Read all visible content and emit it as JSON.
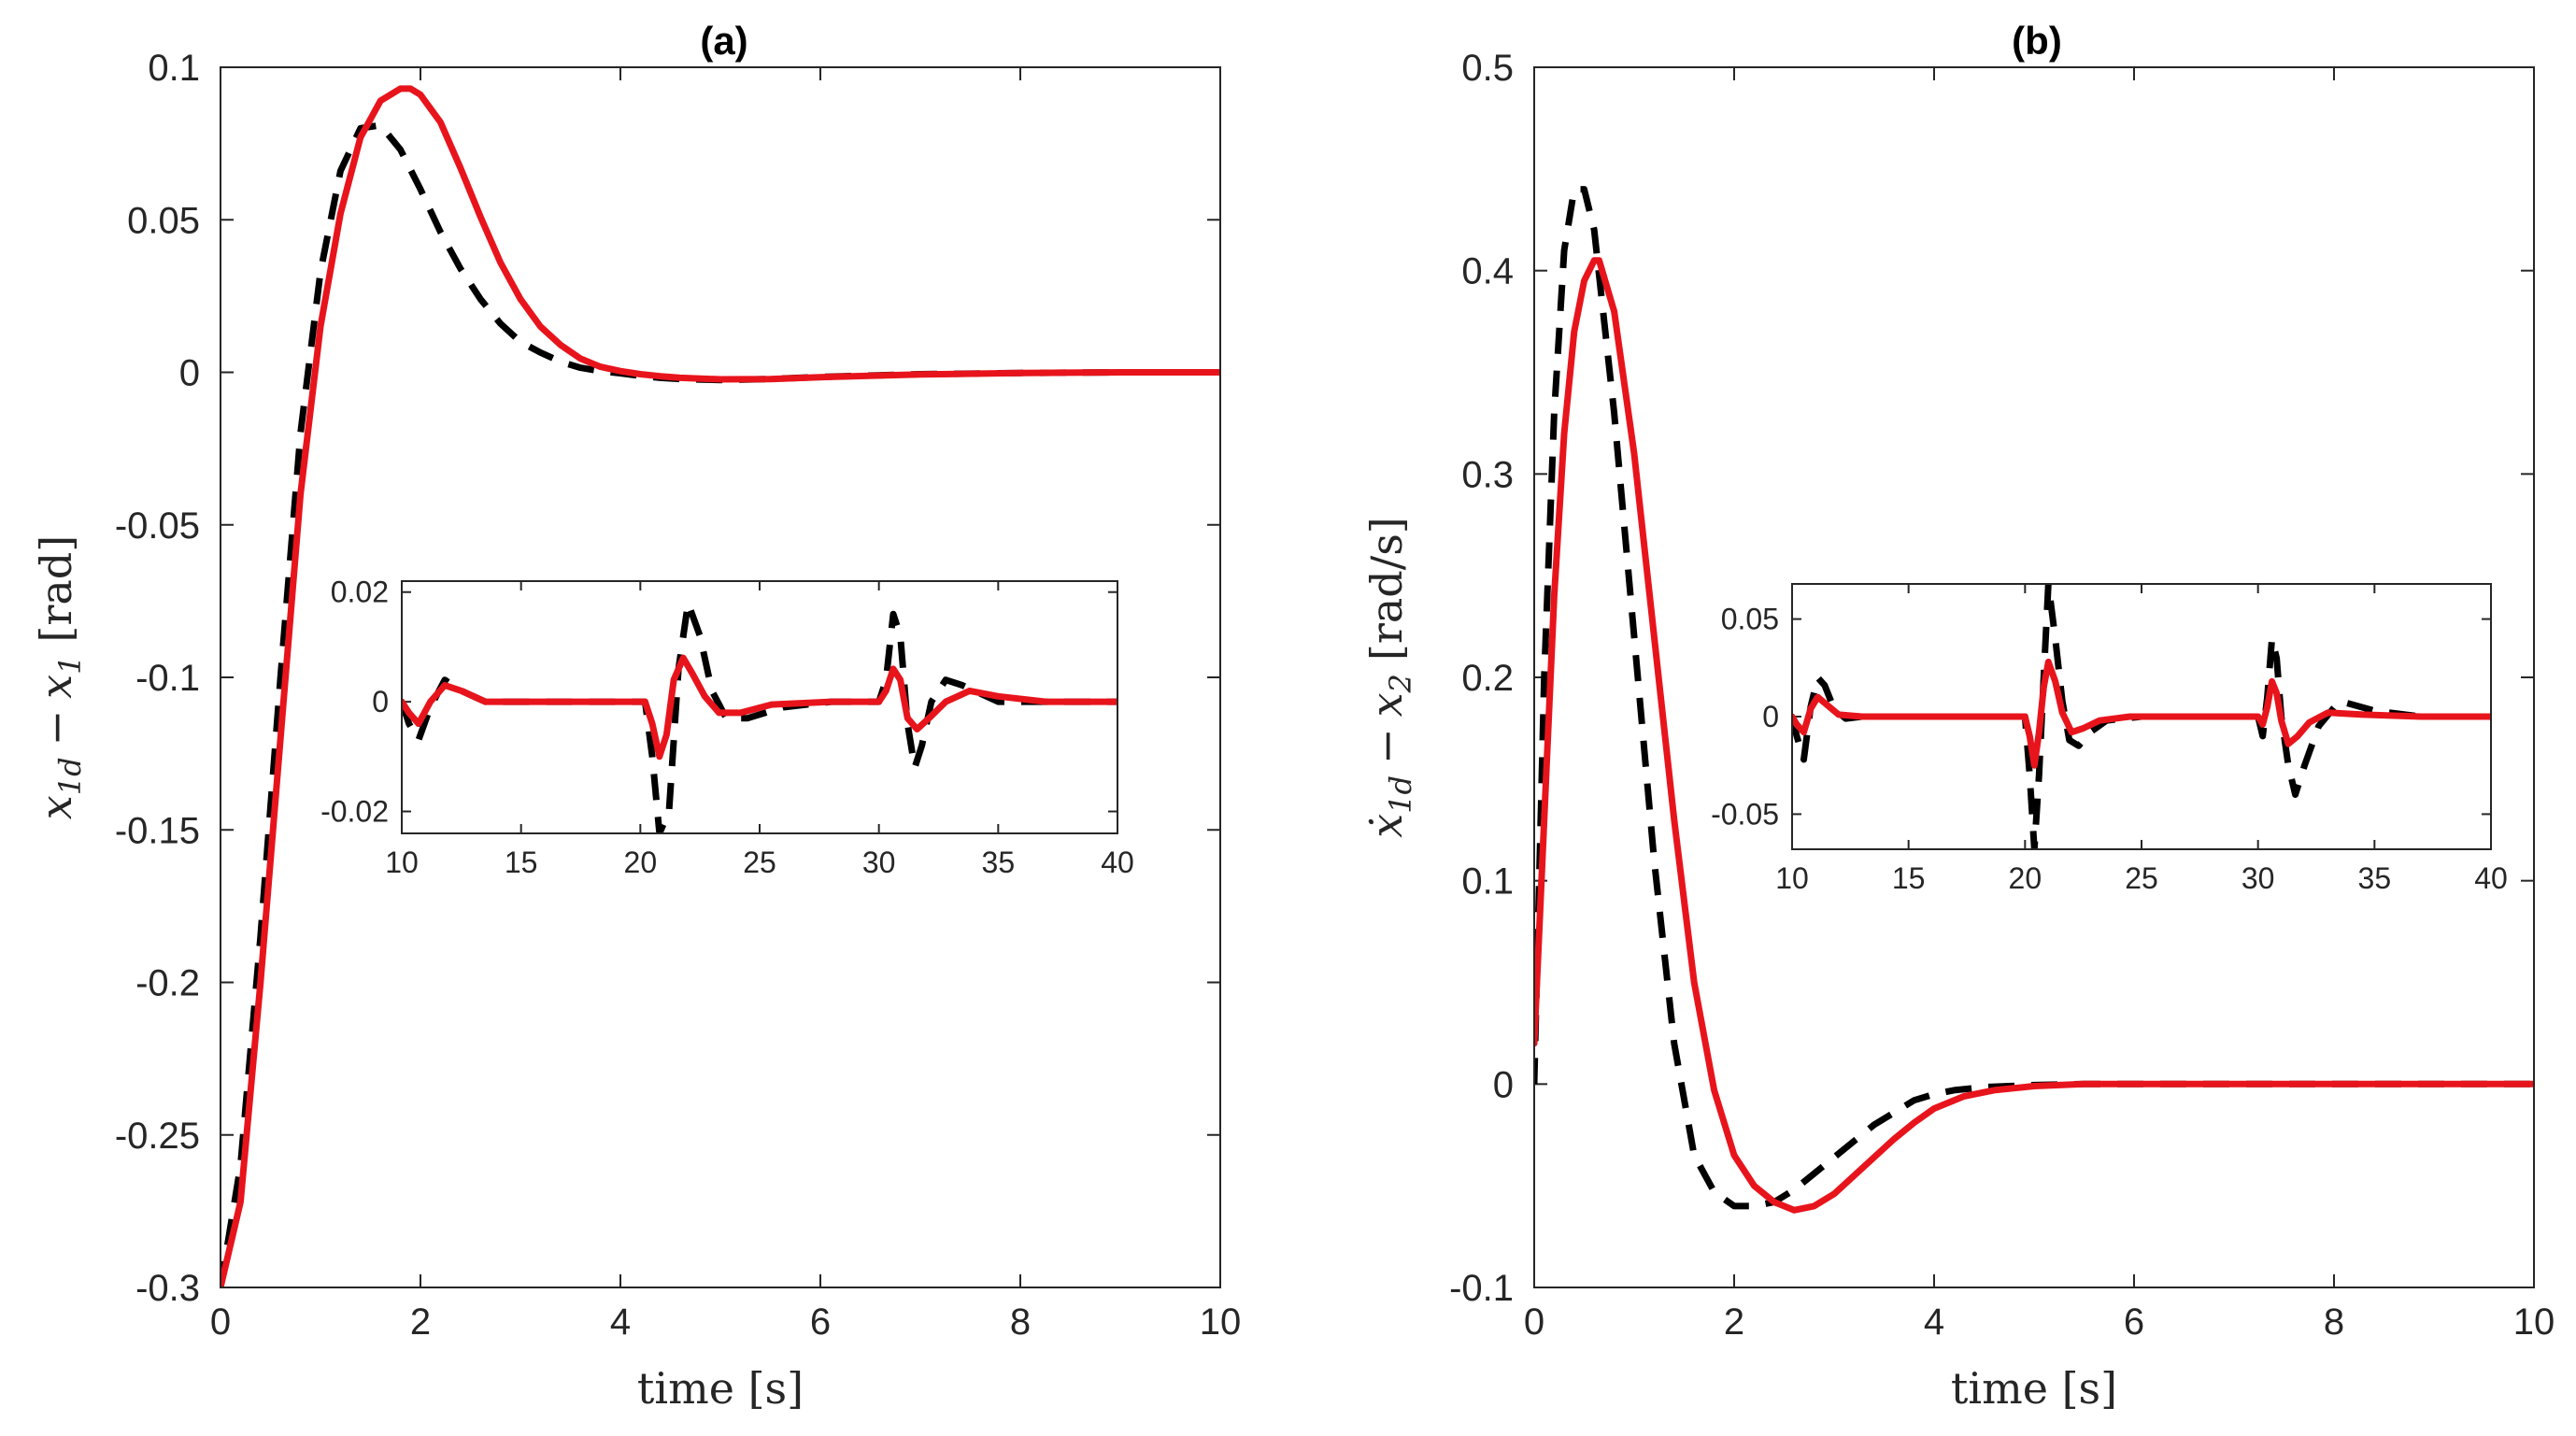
{
  "colors": {
    "controller_red": "#e8141c",
    "controller_black": "#000000",
    "axes": "#262626"
  },
  "chart_data": [
    {
      "type": "line",
      "panel": "(a)",
      "title": "(a)",
      "xlabel": "time [s]",
      "ylabel": "x_{1d} - x_1 [rad]",
      "ylabel_parts": {
        "var1": "x",
        "sub1": "1d",
        "op": "−",
        "var2": "x",
        "sub2": "1",
        "unit": "[rad]"
      },
      "xlim": [
        0,
        10
      ],
      "ylim": [
        -0.3,
        0.1
      ],
      "xticks": [
        0,
        2,
        4,
        6,
        8,
        10
      ],
      "xtick_labels": [
        "0",
        "2",
        "4",
        "6",
        "8",
        "10"
      ],
      "yticks": [
        -0.3,
        -0.25,
        -0.2,
        -0.15,
        -0.1,
        -0.05,
        0,
        0.05,
        0.1
      ],
      "ytick_labels": [
        "-0.3",
        "-0.25",
        "-0.2",
        "-0.15",
        "-0.1",
        "-0.05",
        "0",
        "0.05",
        "0.1"
      ],
      "series": [
        {
          "name": "dashed-black",
          "style": "dashed",
          "color": "#000000",
          "x": [
            0,
            0.2,
            0.4,
            0.6,
            0.8,
            1.0,
            1.2,
            1.4,
            1.6,
            1.8,
            2.0,
            2.2,
            2.4,
            2.6,
            2.8,
            3.0,
            3.2,
            3.4,
            3.6,
            3.8,
            4.0,
            4.2,
            4.4,
            4.6,
            5.0,
            5.5,
            6.0,
            7.0,
            8.0,
            9.0,
            10.0
          ],
          "y": [
            -0.3,
            -0.26,
            -0.185,
            -0.1,
            -0.02,
            0.033,
            0.066,
            0.08,
            0.081,
            0.073,
            0.06,
            0.046,
            0.034,
            0.024,
            0.016,
            0.01,
            0.0065,
            0.0035,
            0.0015,
            0.0004,
            -0.0003,
            -0.0012,
            -0.0018,
            -0.0022,
            -0.0025,
            -0.0022,
            -0.0015,
            -0.0006,
            -0.0002,
            0.0,
            0.0
          ]
        },
        {
          "name": "solid-red",
          "style": "solid",
          "color": "#e8141c",
          "x": [
            0,
            0.2,
            0.4,
            0.6,
            0.8,
            1.0,
            1.2,
            1.4,
            1.6,
            1.8,
            1.9,
            2.0,
            2.2,
            2.4,
            2.6,
            2.8,
            3.0,
            3.2,
            3.4,
            3.6,
            3.8,
            4.0,
            4.2,
            4.4,
            4.6,
            5.0,
            5.5,
            6.0,
            7.0,
            8.0,
            9.0,
            10.0
          ],
          "y": [
            -0.3,
            -0.272,
            -0.2,
            -0.12,
            -0.04,
            0.015,
            0.052,
            0.077,
            0.089,
            0.093,
            0.093,
            0.091,
            0.082,
            0.067,
            0.051,
            0.036,
            0.024,
            0.015,
            0.009,
            0.0045,
            0.0018,
            0.0004,
            -0.0006,
            -0.0013,
            -0.0018,
            -0.0023,
            -0.0022,
            -0.0016,
            -0.0007,
            -0.0002,
            0.0,
            0.0
          ]
        }
      ],
      "inset": {
        "xlim": [
          10,
          40
        ],
        "ylim": [
          -0.024,
          0.022
        ],
        "xticks": [
          10,
          15,
          20,
          25,
          30,
          35,
          40
        ],
        "xtick_labels": [
          "10",
          "15",
          "20",
          "25",
          "30",
          "35",
          "40"
        ],
        "yticks": [
          0.02,
          0,
          -0.02
        ],
        "ytick_labels": [
          "0.02",
          "0",
          "-0.02"
        ],
        "series": [
          {
            "name": "inset-dashed-black",
            "style": "dashed",
            "color": "#000000",
            "x": [
              10,
              10.3,
              10.7,
              11.2,
              11.8,
              12.5,
              13.5,
              15,
              18,
              20.2,
              20.5,
              20.8,
              21.2,
              21.6,
              22.0,
              22.5,
              23,
              23.6,
              24.5,
              26,
              28,
              30.0,
              30.3,
              30.6,
              30.9,
              31.2,
              31.5,
              31.8,
              32.2,
              32.8,
              33.5,
              35,
              37,
              40
            ],
            "y": [
              0,
              -0.004,
              -0.007,
              -0.001,
              0.004,
              0.002,
              0.0,
              0.0,
              0.0,
              0.0,
              -0.01,
              -0.024,
              -0.02,
              0.006,
              0.018,
              0.012,
              0.002,
              -0.003,
              -0.003,
              -0.001,
              0.0,
              0.0,
              0.004,
              0.016,
              0.012,
              -0.004,
              -0.012,
              -0.008,
              0.0,
              0.004,
              0.003,
              0.0,
              0.0,
              0.0
            ]
          },
          {
            "name": "inset-solid-red",
            "style": "solid",
            "color": "#e8141c",
            "x": [
              10,
              10.3,
              10.7,
              11.2,
              11.8,
              12.5,
              13.5,
              15,
              18,
              20.2,
              20.5,
              20.8,
              21.1,
              21.4,
              21.8,
              22.2,
              22.7,
              23.3,
              24.2,
              25.5,
              28,
              30.0,
              30.3,
              30.6,
              30.9,
              31.2,
              31.6,
              32.1,
              32.8,
              33.8,
              35,
              37,
              40
            ],
            "y": [
              0,
              -0.002,
              -0.004,
              0.0,
              0.003,
              0.002,
              0.0,
              0.0,
              0.0,
              0.0,
              -0.004,
              -0.01,
              -0.006,
              0.004,
              0.008,
              0.005,
              0.001,
              -0.002,
              -0.002,
              -0.0005,
              0.0,
              0.0,
              0.002,
              0.006,
              0.004,
              -0.003,
              -0.005,
              -0.003,
              0.0,
              0.002,
              0.001,
              0.0,
              0.0
            ]
          }
        ]
      }
    },
    {
      "type": "line",
      "panel": "(b)",
      "title": "(b)",
      "xlabel": "time [s]",
      "ylabel": "ẋ_{1d} - x_2 [rad/s]",
      "ylabel_parts": {
        "var1": "ẋ",
        "sub1": "1d",
        "op": "−",
        "var2": "x",
        "sub2": "2",
        "unit": "[rad/s]"
      },
      "xlim": [
        0,
        10
      ],
      "ylim": [
        -0.1,
        0.5
      ],
      "xticks": [
        0,
        2,
        4,
        6,
        8,
        10
      ],
      "xtick_labels": [
        "0",
        "2",
        "4",
        "6",
        "8",
        "10"
      ],
      "yticks": [
        -0.1,
        0,
        0.1,
        0.2,
        0.3,
        0.4,
        0.5
      ],
      "ytick_labels": [
        "-0.1",
        "0",
        "0.1",
        "0.2",
        "0.3",
        "0.4",
        "0.5"
      ],
      "series": [
        {
          "name": "dashed-black",
          "style": "dashed",
          "color": "#000000",
          "x": [
            0,
            0.1,
            0.2,
            0.3,
            0.4,
            0.5,
            0.6,
            0.8,
            1.0,
            1.2,
            1.4,
            1.6,
            1.8,
            2.0,
            2.2,
            2.4,
            2.6,
            2.8,
            3.0,
            3.2,
            3.4,
            3.6,
            3.8,
            4.0,
            4.2,
            4.5,
            5.0,
            5.5,
            6.0,
            7.0,
            8.0,
            9.0,
            10.0
          ],
          "y": [
            0,
            0.2,
            0.33,
            0.41,
            0.44,
            0.44,
            0.42,
            0.33,
            0.22,
            0.11,
            0.02,
            -0.035,
            -0.053,
            -0.06,
            -0.06,
            -0.058,
            -0.052,
            -0.044,
            -0.036,
            -0.028,
            -0.02,
            -0.014,
            -0.008,
            -0.005,
            -0.003,
            -0.0015,
            -0.0005,
            0.0,
            0.0,
            0.0,
            0.0,
            0.0,
            0.0
          ]
        },
        {
          "name": "solid-red",
          "style": "solid",
          "color": "#e8141c",
          "x": [
            0,
            0.1,
            0.2,
            0.3,
            0.4,
            0.5,
            0.6,
            0.65,
            0.8,
            1.0,
            1.2,
            1.4,
            1.6,
            1.8,
            2.0,
            2.2,
            2.4,
            2.6,
            2.8,
            3.0,
            3.2,
            3.4,
            3.6,
            3.8,
            4.0,
            4.3,
            4.6,
            5.0,
            5.5,
            6.0,
            7.0,
            8.0,
            9.0,
            10.0
          ],
          "y": [
            0.02,
            0.13,
            0.24,
            0.32,
            0.37,
            0.395,
            0.405,
            0.405,
            0.38,
            0.31,
            0.22,
            0.13,
            0.05,
            -0.003,
            -0.035,
            -0.05,
            -0.058,
            -0.062,
            -0.06,
            -0.054,
            -0.045,
            -0.036,
            -0.027,
            -0.019,
            -0.012,
            -0.006,
            -0.003,
            -0.001,
            0.0,
            0.0,
            0.0,
            0.0,
            0.0,
            0.0
          ]
        }
      ],
      "inset": {
        "xlim": [
          10,
          40
        ],
        "ylim": [
          -0.068,
          0.068
        ],
        "xticks": [
          10,
          15,
          20,
          25,
          30,
          35,
          40
        ],
        "xtick_labels": [
          "10",
          "15",
          "20",
          "25",
          "30",
          "35",
          "40"
        ],
        "yticks": [
          0.05,
          0,
          -0.05
        ],
        "ytick_labels": [
          "0.05",
          "0",
          "-0.05"
        ],
        "series": [
          {
            "name": "inset-dashed-black",
            "style": "dashed",
            "color": "#000000",
            "x": [
              10,
              10.2,
              10.5,
              10.8,
              11.1,
              11.4,
              11.8,
              12.3,
              13,
              15,
              18,
              20.0,
              20.2,
              20.4,
              20.6,
              20.8,
              21.0,
              21.3,
              21.6,
              21.9,
              22.3,
              22.8,
              23.5,
              25,
              28,
              30.0,
              30.2,
              30.4,
              30.6,
              30.8,
              31.0,
              31.3,
              31.6,
              32.0,
              32.6,
              33.5,
              35,
              37,
              40
            ],
            "y": [
              0,
              -0.01,
              -0.022,
              0.005,
              0.02,
              0.016,
              0.004,
              -0.001,
              0.0,
              0.0,
              0.0,
              0.0,
              -0.03,
              -0.068,
              -0.03,
              0.02,
              0.068,
              0.04,
              0.008,
              -0.012,
              -0.015,
              -0.008,
              -0.002,
              0.0,
              0.0,
              0.0,
              -0.01,
              0.01,
              0.04,
              0.03,
              0.0,
              -0.025,
              -0.04,
              -0.025,
              -0.005,
              0.008,
              0.003,
              0.0,
              0.0
            ]
          },
          {
            "name": "inset-solid-red",
            "style": "solid",
            "color": "#e8141c",
            "x": [
              10,
              10.2,
              10.5,
              10.8,
              11.1,
              11.5,
              12,
              13,
              15,
              18,
              20.0,
              20.2,
              20.4,
              20.6,
              20.8,
              21.0,
              21.3,
              21.6,
              22.0,
              22.5,
              23.2,
              24.5,
              27,
              30.0,
              30.2,
              30.4,
              30.6,
              30.8,
              31.0,
              31.3,
              31.7,
              32.2,
              33,
              34.5,
              37,
              40
            ],
            "y": [
              0,
              -0.004,
              -0.008,
              0.004,
              0.01,
              0.006,
              0.001,
              0.0,
              0.0,
              0.0,
              0.0,
              -0.01,
              -0.025,
              -0.008,
              0.015,
              0.028,
              0.018,
              0.002,
              -0.008,
              -0.006,
              -0.002,
              0.0,
              0.0,
              0.0,
              -0.004,
              0.005,
              0.018,
              0.012,
              -0.002,
              -0.014,
              -0.01,
              -0.003,
              0.002,
              0.001,
              0.0,
              0.0
            ]
          }
        ]
      }
    }
  ]
}
